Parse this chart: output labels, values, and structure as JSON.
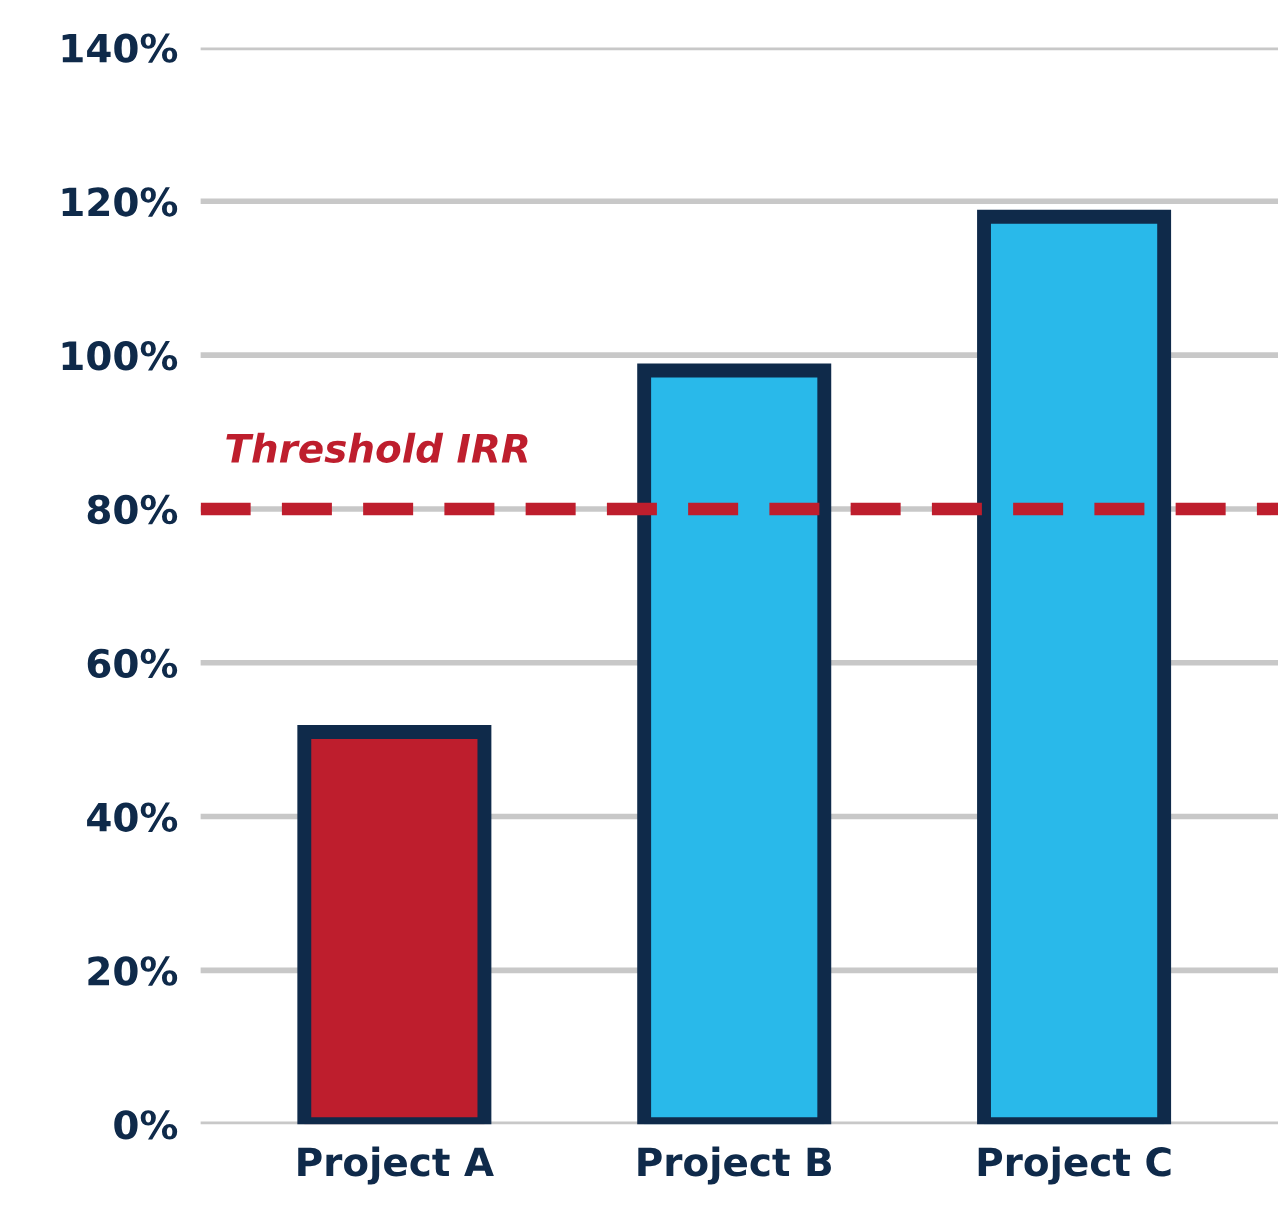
{
  "chart_data": {
    "type": "bar",
    "categories": [
      "Project A",
      "Project B",
      "Project C"
    ],
    "values": [
      51,
      98,
      118
    ],
    "colors": [
      "#be1e2d",
      "#29b9ea",
      "#29b9ea"
    ],
    "ylim": [
      0,
      140
    ],
    "yticks": [
      {
        "value": 0,
        "label": "0%"
      },
      {
        "value": 20,
        "label": "20%"
      },
      {
        "value": 40,
        "label": "40%"
      },
      {
        "value": 60,
        "label": "60%"
      },
      {
        "value": 80,
        "label": "80%"
      },
      {
        "value": 100,
        "label": "100%"
      },
      {
        "value": 120,
        "label": "120%"
      },
      {
        "value": 140,
        "label": "140%"
      }
    ],
    "grid": "y",
    "ref_lines": [
      {
        "axis": "y",
        "value": 80,
        "label": "Threshold IRR",
        "color": "#be1e2d",
        "line_style": "dashed"
      }
    ]
  }
}
